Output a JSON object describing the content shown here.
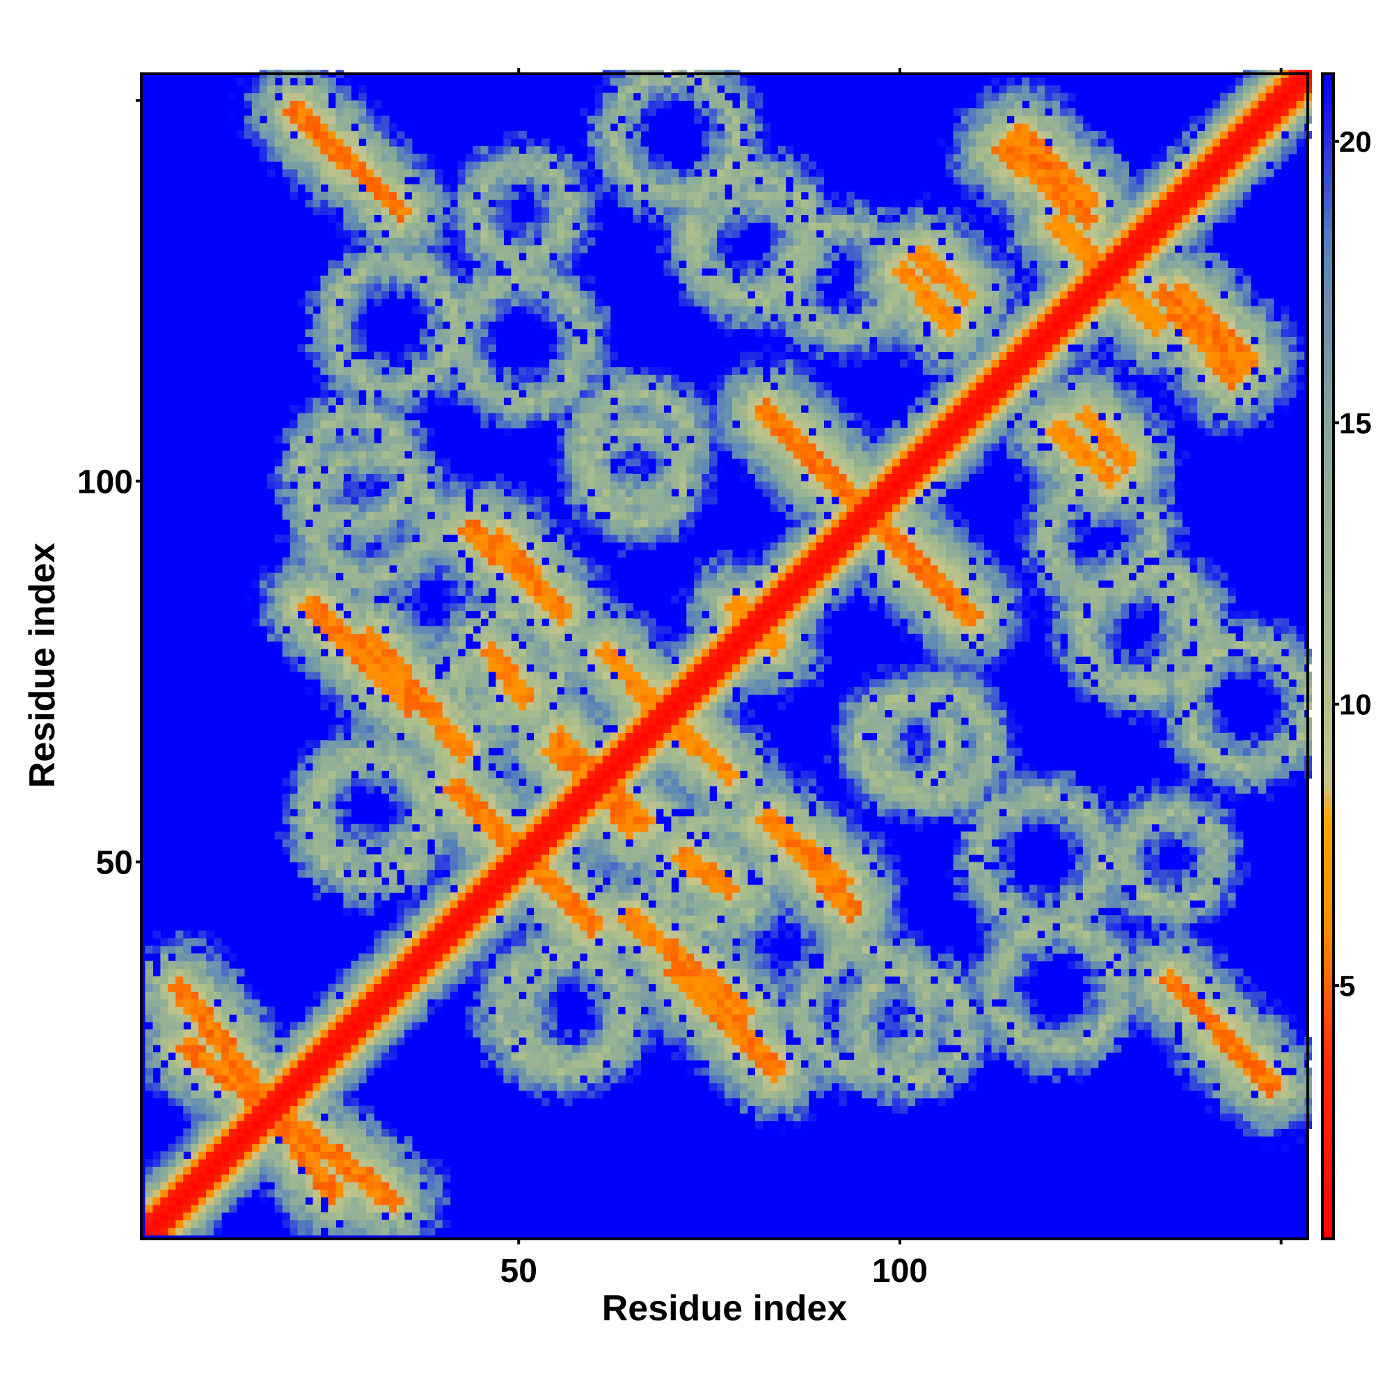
{
  "chart_data": {
    "type": "heatmap",
    "title": "",
    "xlabel": "Residue index",
    "ylabel": "Residue index",
    "n_residues": 153,
    "xlim": [
      1,
      153
    ],
    "ylim": [
      1,
      153
    ],
    "x_ticks": [
      50,
      100
    ],
    "y_ticks": [
      50,
      100
    ],
    "colorbar": {
      "ticks": [
        5,
        10,
        15,
        20
      ],
      "range": [
        0.5,
        21.2
      ],
      "stops": [
        {
          "value": 0.5,
          "color": "#ff0000"
        },
        {
          "value": 3.8,
          "color": "#ff3000"
        },
        {
          "value": 6.0,
          "color": "#ff8c00"
        },
        {
          "value": 8.0,
          "color": "#ffa500"
        },
        {
          "value": 8.6,
          "color": "#c7c48c"
        },
        {
          "value": 11.0,
          "color": "#a9bd8c"
        },
        {
          "value": 14.5,
          "color": "#8aaa9a"
        },
        {
          "value": 18.0,
          "color": "#5b86b8"
        },
        {
          "value": 21.2,
          "color": "#0000ff"
        }
      ]
    },
    "background_value": 21.2,
    "background_color": "#0000ff",
    "value_description": "inter-residue distance map (symmetric)",
    "diagonal": {
      "value": 1.0,
      "half_width": 2
    },
    "contact_bands": [
      {
        "i_start": 6,
        "j_start": 25,
        "i_end": 33,
        "j_end": 5,
        "core": 4.8
      },
      {
        "i_start": 46,
        "j_start": 77,
        "i_end": 50,
        "j_end": 71,
        "core": 5.2
      },
      {
        "i_start": 41,
        "j_start": 59,
        "i_end": 49,
        "j_end": 51,
        "core": 5.0
      },
      {
        "i_start": 22,
        "j_start": 83,
        "i_end": 35,
        "j_end": 70,
        "core": 5.0
      },
      {
        "i_start": 43,
        "j_start": 93,
        "i_end": 51,
        "j_end": 86,
        "core": 5.0
      },
      {
        "i_start": 55,
        "j_start": 66,
        "i_end": 64,
        "j_end": 54,
        "core": 5.0
      },
      {
        "i_start": 61,
        "j_start": 77,
        "i_end": 72,
        "j_end": 65,
        "core": 5.5
      },
      {
        "i_start": 82,
        "j_start": 109,
        "i_end": 93,
        "j_end": 97,
        "core": 4.8
      },
      {
        "i_start": 94,
        "j_start": 96,
        "i_end": 108,
        "j_end": 82,
        "core": 5.0
      },
      {
        "i_start": 82,
        "j_start": 55,
        "i_end": 92,
        "j_end": 47,
        "core": 5.0
      },
      {
        "i_start": 64,
        "j_start": 42,
        "i_end": 79,
        "j_end": 30,
        "core": 5.0
      },
      {
        "i_start": 115,
        "j_start": 145,
        "i_end": 124,
        "j_end": 136,
        "core": 4.8
      },
      {
        "i_start": 102,
        "j_start": 129,
        "i_end": 108,
        "j_end": 124,
        "core": 5.5
      },
      {
        "i_start": 120,
        "j_start": 133,
        "i_end": 129,
        "j_end": 125,
        "core": 5.5
      },
      {
        "i_start": 134,
        "j_start": 124,
        "i_end": 143,
        "j_end": 113,
        "core": 5.0
      },
      {
        "i_start": 120,
        "j_start": 106,
        "i_end": 127,
        "j_end": 100,
        "core": 5.5
      },
      {
        "i_start": 135,
        "j_start": 34,
        "i_end": 148,
        "j_end": 20,
        "core": 4.8
      },
      {
        "i_start": 80,
        "j_start": 81,
        "i_end": 83,
        "j_end": 78,
        "core": 5.5
      }
    ],
    "loop_contacts": [
      {
        "i_center": 33,
        "j_center": 120,
        "r": 8
      },
      {
        "i_center": 50,
        "j_center": 135,
        "r": 6
      },
      {
        "i_center": 80,
        "j_center": 132,
        "r": 8
      },
      {
        "i_center": 92,
        "j_center": 126,
        "r": 7
      },
      {
        "i_center": 65,
        "j_center": 104,
        "r": 7
      },
      {
        "i_center": 28,
        "j_center": 101,
        "r": 7
      },
      {
        "i_center": 100,
        "j_center": 65,
        "r": 6
      },
      {
        "i_center": 130,
        "j_center": 80,
        "r": 7
      },
      {
        "i_center": 145,
        "j_center": 70,
        "r": 8
      },
      {
        "i_center": 118,
        "j_center": 50,
        "r": 8
      },
      {
        "i_center": 95,
        "j_center": 30,
        "r": 8
      },
      {
        "i_center": 57,
        "j_center": 30,
        "r": 7
      },
      {
        "i_center": 30,
        "j_center": 55,
        "r": 8
      },
      {
        "i_center": 75,
        "j_center": 48,
        "r": 7
      }
    ]
  }
}
